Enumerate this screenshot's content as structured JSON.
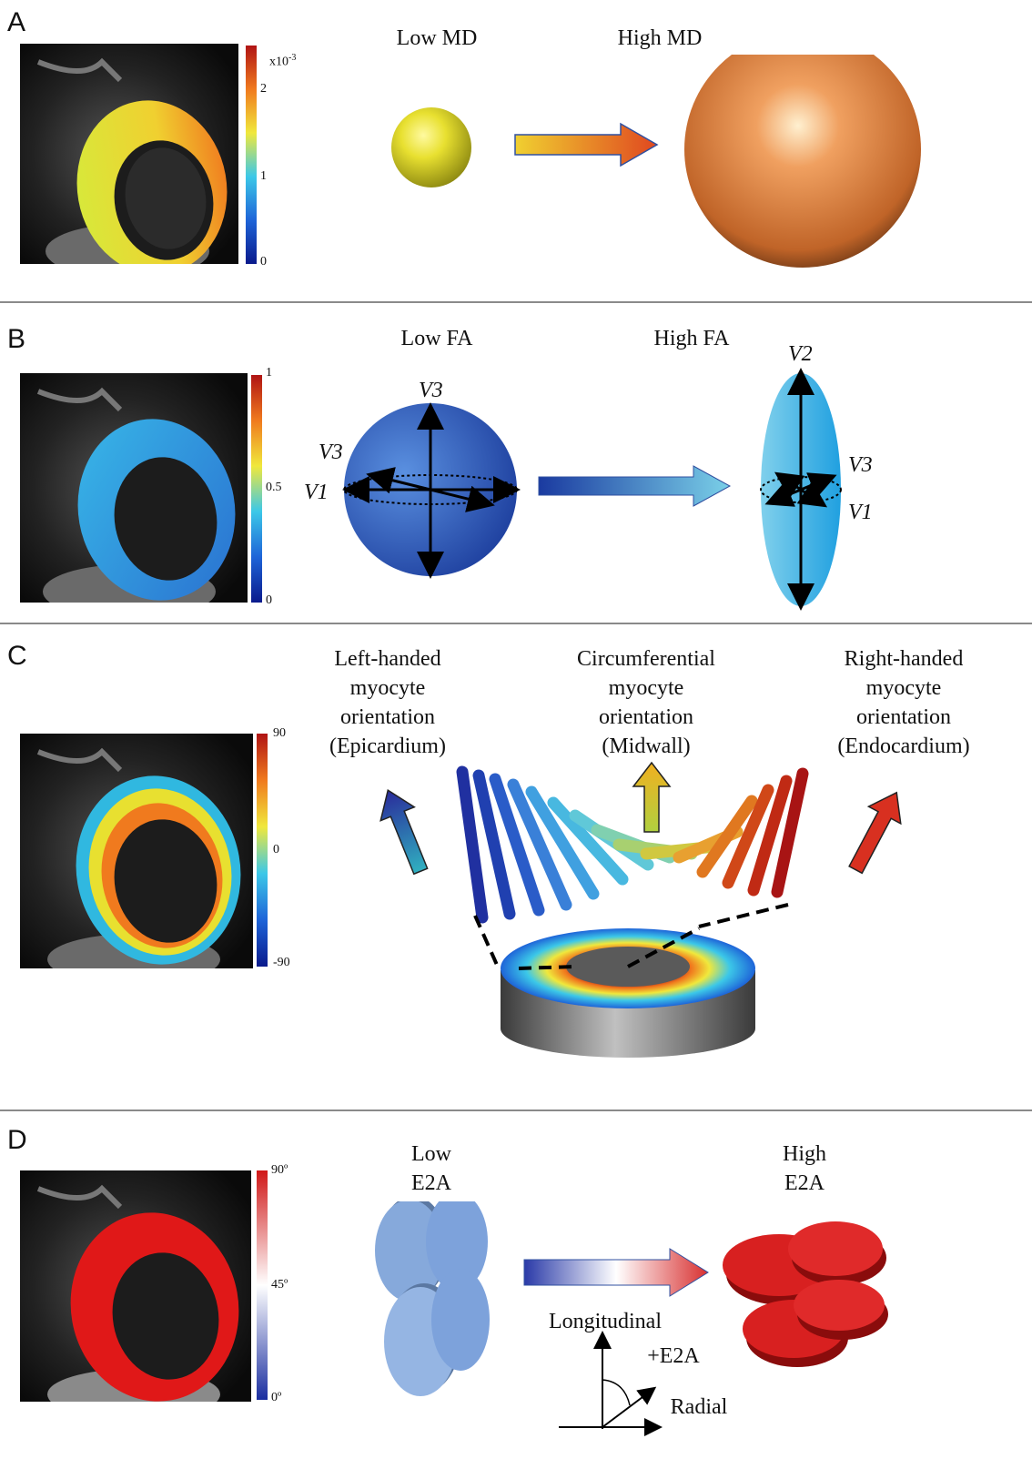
{
  "panels": {
    "a": {
      "label": "A",
      "colorbar_unit": "x10",
      "colorbar_exp": "-3",
      "ticks": [
        "2",
        "1",
        "0"
      ],
      "caption_low": "Low MD",
      "caption_high": "High MD"
    },
    "b": {
      "label": "B",
      "ticks": [
        "1",
        "0.5",
        "0"
      ],
      "caption_low": "Low FA",
      "caption_high": "High FA",
      "vectors": {
        "v1": "V1",
        "v2": "V2",
        "v3": "V3"
      }
    },
    "c": {
      "label": "C",
      "ticks": [
        "90",
        "0",
        "-90"
      ],
      "left_caption": [
        "Left-handed",
        "myocyte",
        "orientation",
        "(Epicardium)"
      ],
      "mid_caption": [
        "Circumferential",
        "myocyte",
        "orientation",
        "(Midwall)"
      ],
      "right_caption": [
        "Right-handed",
        "myocyte",
        "orientation",
        "(Endocardium)"
      ]
    },
    "d": {
      "label": "D",
      "ticks": [
        "90º",
        "45º",
        "0º"
      ],
      "caption_low": [
        "Low",
        "E2A"
      ],
      "caption_high": [
        "High",
        "E2A"
      ],
      "axis_longitudinal": "Longitudinal",
      "axis_e2a": "+E2A",
      "axis_radial": "Radial"
    }
  },
  "colors": {
    "jet": [
      "#0a1a8c",
      "#1e64d8",
      "#3cc8e8",
      "#f0e83c",
      "#f07a1e",
      "#b01414"
    ],
    "bwr": [
      "#1a2ea0",
      "#ffffff",
      "#d01818"
    ],
    "divider": "#8a8a8a"
  }
}
